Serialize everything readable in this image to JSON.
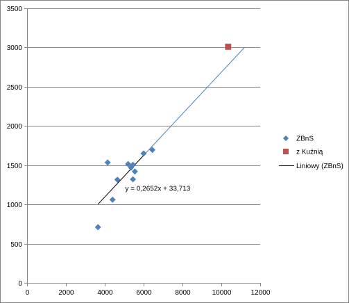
{
  "chart_data": {
    "type": "scatter",
    "title": "",
    "xlabel": "",
    "ylabel": "",
    "xlim": [
      0,
      12000
    ],
    "ylim": [
      0,
      3500
    ],
    "x_ticks": [
      "0",
      "2000",
      "4000",
      "6000",
      "8000",
      "10000",
      "12000"
    ],
    "y_ticks": [
      "0",
      "500",
      "1000",
      "1500",
      "2000",
      "2500",
      "3000",
      "3500"
    ],
    "grid": "horizontal major gridlines",
    "legend_position": "right",
    "series": [
      {
        "name": "ZBnS",
        "marker": "diamond",
        "color": "#4F81BD",
        "points": [
          [
            3650,
            710
          ],
          [
            4150,
            1535
          ],
          [
            4400,
            1060
          ],
          [
            4650,
            1315
          ],
          [
            5200,
            1515
          ],
          [
            5350,
            1470
          ],
          [
            5450,
            1320
          ],
          [
            5450,
            1505
          ],
          [
            5550,
            1420
          ],
          [
            6000,
            1650
          ],
          [
            6450,
            1695
          ]
        ]
      },
      {
        "name": "z Kuźnią",
        "marker": "square",
        "color": "#C0504D",
        "points": [
          [
            10350,
            3010
          ]
        ]
      }
    ],
    "trendlines": [
      {
        "name": "Liniowy (ZBnS)",
        "color": "#000000",
        "x_range": [
          3650,
          6050
        ]
      },
      {
        "name": "",
        "color": "#4F81BD",
        "x_range": [
          6050,
          11200
        ]
      }
    ],
    "equation_label": "y = 0,2652x + 33,713",
    "equation": {
      "slope": 0.2652,
      "intercept": 33.713
    }
  }
}
